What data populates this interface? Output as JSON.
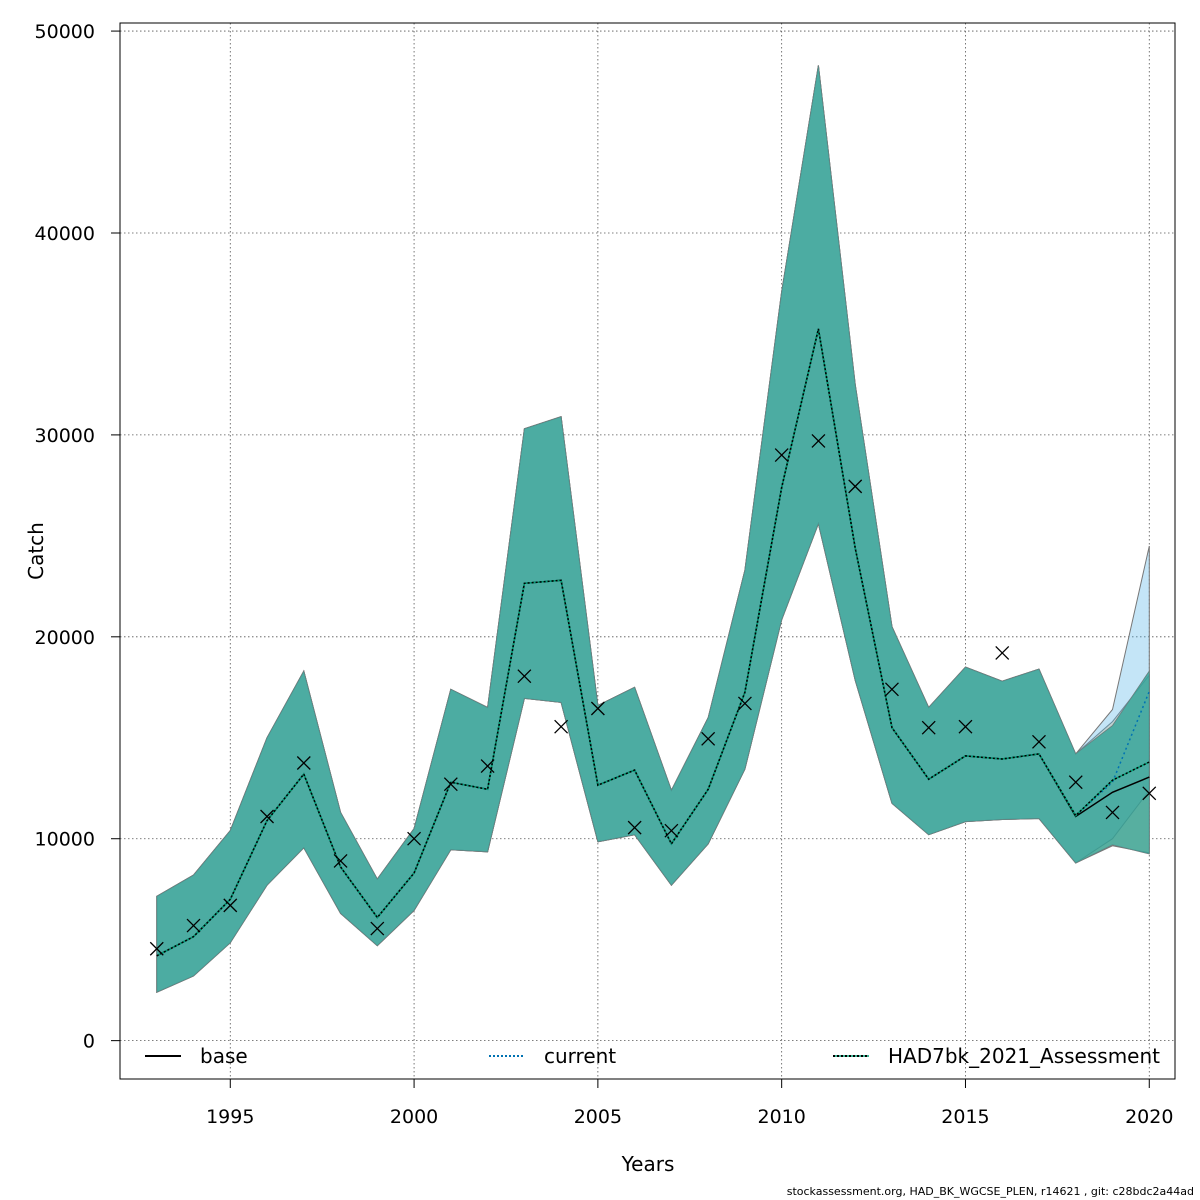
{
  "chart_data": {
    "type": "line",
    "title": "",
    "xlabel": "Years",
    "ylabel": "Catch",
    "xlim": [
      1992.0,
      2020.7
    ],
    "ylim": [
      -1900,
      50400
    ],
    "x_ticks": [
      1995,
      2000,
      2005,
      2010,
      2015,
      2020
    ],
    "y_ticks": [
      0,
      10000,
      20000,
      30000,
      40000,
      50000
    ],
    "grid": true,
    "legend_position": "bottom",
    "legend": [
      {
        "name": "base",
        "style": "solid",
        "color": "#000000"
      },
      {
        "name": "current",
        "style": "dotted",
        "color": "#0072B2"
      },
      {
        "name": "HAD7bk_2021_Assessment",
        "style": "dotted",
        "color": "#009E73"
      }
    ],
    "years": [
      1993,
      1994,
      1995,
      1996,
      1997,
      1998,
      1999,
      2000,
      2001,
      2002,
      2003,
      2004,
      2005,
      2006,
      2007,
      2008,
      2009,
      2010,
      2011,
      2012,
      2013,
      2014,
      2015,
      2016,
      2017,
      2018,
      2019,
      2020
    ],
    "observed": [
      4550,
      5700,
      6700,
      11100,
      13750,
      8900,
      5550,
      10000,
      12700,
      13600,
      18050,
      15550,
      16450,
      10550,
      10400,
      14950,
      16700,
      29000,
      29700,
      27450,
      17400,
      15500,
      15550,
      19200,
      14800,
      12800,
      11300,
      12250
    ],
    "series": [
      {
        "name": "base",
        "fill": "#f7e7c8",
        "values": [
          4200,
          5150,
          7000,
          10900,
          13200,
          8600,
          6100,
          8300,
          12800,
          12450,
          22650,
          22800,
          12650,
          13400,
          9750,
          12450,
          17250,
          27400,
          35250,
          24400,
          15500,
          12950,
          14100,
          13950,
          14200,
          11100,
          12300,
          13050
        ],
        "upper": [
          7150,
          8200,
          10400,
          15000,
          18300,
          11300,
          8000,
          10500,
          17400,
          16500,
          30300,
          30900,
          16600,
          17500,
          12400,
          16000,
          23300,
          37100,
          48300,
          32500,
          20500,
          16500,
          18500,
          17800,
          18400,
          14200,
          15800,
          18100
        ],
        "lower": [
          2400,
          3200,
          4850,
          7700,
          9550,
          6300,
          4700,
          6450,
          9450,
          9350,
          16950,
          16750,
          9850,
          10200,
          7700,
          9750,
          13450,
          20850,
          25600,
          17850,
          11750,
          10200,
          10850,
          10950,
          11000,
          8800,
          9650,
          9300
        ]
      },
      {
        "name": "current",
        "fill": "#56B4E9",
        "values": [
          4200,
          5150,
          7000,
          10900,
          13200,
          8600,
          6100,
          8300,
          12800,
          12450,
          22650,
          22800,
          12650,
          13400,
          9750,
          12450,
          17250,
          27400,
          35250,
          24400,
          15500,
          12950,
          14100,
          13950,
          14200,
          11150,
          12800,
          17300
        ],
        "upper": [
          7150,
          8200,
          10400,
          15000,
          18300,
          11300,
          8000,
          10500,
          17400,
          16500,
          30300,
          30900,
          16600,
          17500,
          12400,
          16000,
          23300,
          37100,
          48300,
          32500,
          20500,
          16500,
          18500,
          17800,
          18400,
          14200,
          16400,
          24500
        ],
        "lower": [
          2400,
          3200,
          4850,
          7700,
          9550,
          6300,
          4700,
          6450,
          9450,
          9350,
          16950,
          16750,
          9850,
          10200,
          7700,
          9750,
          13450,
          20850,
          25600,
          17850,
          11750,
          10200,
          10850,
          10950,
          11000,
          8800,
          10000,
          12400
        ]
      },
      {
        "name": "HAD7bk_2021_Assessment",
        "fill": "#009E73",
        "values": [
          4200,
          5150,
          7000,
          10900,
          13200,
          8600,
          6100,
          8300,
          12800,
          12450,
          22650,
          22800,
          12650,
          13400,
          9750,
          12450,
          17250,
          27400,
          35250,
          24400,
          15500,
          12950,
          14100,
          13950,
          14200,
          11150,
          12900,
          13800
        ],
        "upper": [
          7150,
          8200,
          10400,
          15000,
          18300,
          11300,
          8000,
          10500,
          17400,
          16500,
          30300,
          30900,
          16600,
          17500,
          12400,
          16000,
          23300,
          37100,
          48300,
          32500,
          20500,
          16500,
          18500,
          17800,
          18400,
          14200,
          15600,
          18300
        ],
        "lower": [
          2400,
          3200,
          4850,
          7700,
          9550,
          6300,
          4700,
          6450,
          9450,
          9350,
          16950,
          16750,
          9850,
          10200,
          7700,
          9750,
          13450,
          20850,
          25600,
          17850,
          11750,
          10200,
          10850,
          10950,
          11000,
          8800,
          9700,
          9250
        ]
      }
    ]
  },
  "footer": "stockassessment.org, HAD_BK_WGCSE_PLEN, r14621 , git: c28bdc2a44ad"
}
